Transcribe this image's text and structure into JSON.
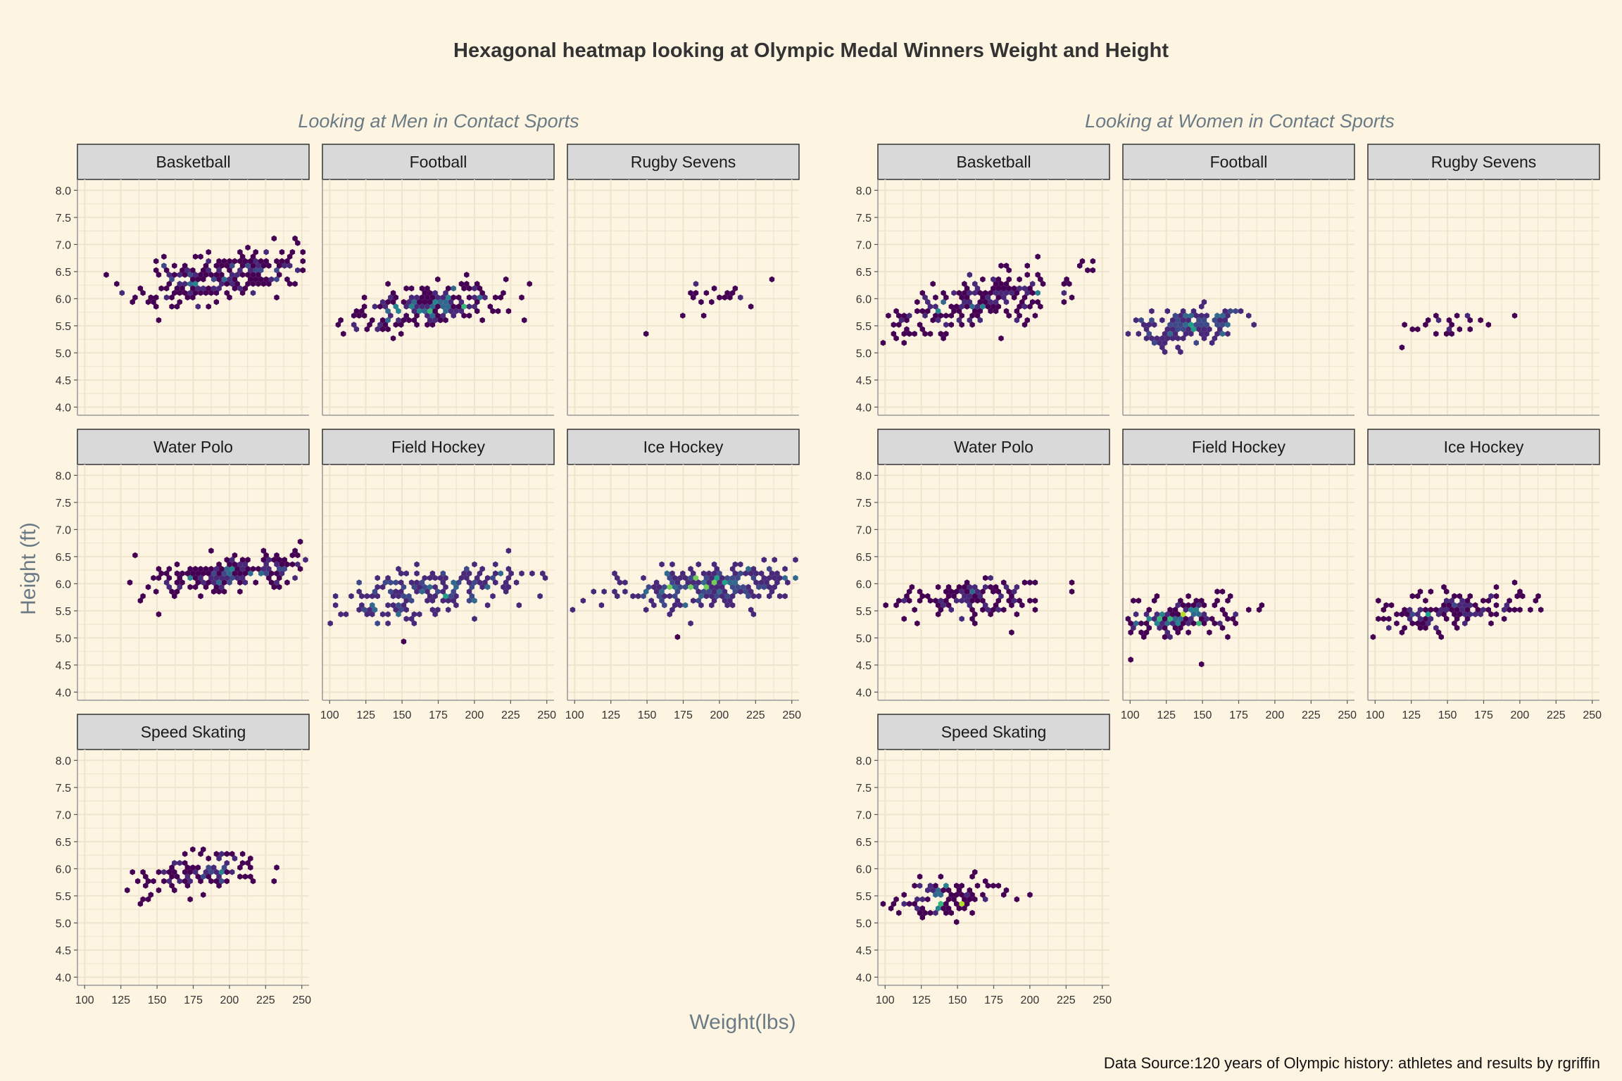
{
  "title": "Hexagonal heatmap looking at Olympic Medal Winners Weight and Height",
  "caption": "Data Source:120 years of Olympic history: athletes and results by rgriffin",
  "axis_titles": {
    "x": "Weight(lbs)",
    "y": "Height (ft)"
  },
  "colors": {
    "background": "#fdf5e2",
    "grid": "#efe5cf",
    "strip_fill": "#d9d9d9",
    "strip_border": "#333333",
    "panel_border": "#9a9a9a",
    "title_text": "#333333",
    "subtitle_text": "#6b7b86",
    "axis_title_text": "#6b7b86",
    "tick_text": "#333333",
    "viridis": [
      "#440154",
      "#482878",
      "#3e4989",
      "#31688e",
      "#26828e",
      "#1f9e89",
      "#35b779",
      "#6ece58",
      "#b5de2b",
      "#fde725"
    ]
  },
  "chart_data": {
    "type": "hexbin",
    "x_ticks": [
      100,
      125,
      150,
      175,
      200,
      225,
      250
    ],
    "y_ticks": [
      "4.0",
      "4.5",
      "5.0",
      "5.5",
      "6.0",
      "6.5",
      "7.0",
      "7.5",
      "8.0"
    ],
    "xlim": [
      95,
      255
    ],
    "ylim": [
      3.85,
      8.2
    ],
    "groups": [
      {
        "subtitle": "Looking at Men in Contact Sports",
        "panels": [
          {
            "name": "Basketball",
            "clusters": [
              {
                "cx": 195,
                "cy": 6.4,
                "sx": 60,
                "sy": 0.45,
                "n": 240,
                "dens": 0.45,
                "rot": 0.6,
                "seed": 11
              },
              {
                "cx": 130,
                "cy": 5.95,
                "sx": 2,
                "sy": 0.05,
                "n": 1,
                "dens": 0.1,
                "rot": 0,
                "seed": 12
              },
              {
                "cx": 147,
                "cy": 5.85,
                "sx": 2,
                "sy": 0.05,
                "n": 1,
                "dens": 0.1,
                "rot": 0,
                "seed": 13
              }
            ]
          },
          {
            "name": "Football",
            "clusters": [
              {
                "cx": 168,
                "cy": 5.85,
                "sx": 55,
                "sy": 0.4,
                "n": 230,
                "dens": 0.7,
                "rot": 0.55,
                "seed": 21
              },
              {
                "cx": 117,
                "cy": 5.4,
                "sx": 3,
                "sy": 0.05,
                "n": 1,
                "dens": 0.1,
                "rot": 0,
                "seed": 22
              }
            ]
          },
          {
            "name": "Rugby Sevens",
            "clusters": [
              {
                "cx": 200,
                "cy": 6.0,
                "sx": 40,
                "sy": 0.35,
                "n": 22,
                "dens": 0.12,
                "rot": 0.5,
                "seed": 31
              }
            ]
          },
          {
            "name": "Water Polo",
            "clusters": [
              {
                "cx": 205,
                "cy": 6.2,
                "sx": 55,
                "sy": 0.35,
                "n": 200,
                "dens": 0.45,
                "rot": 0.45,
                "seed": 41
              },
              {
                "cx": 140,
                "cy": 5.75,
                "sx": 3,
                "sy": 0.05,
                "n": 2,
                "dens": 0.1,
                "rot": 0,
                "seed": 42
              }
            ]
          },
          {
            "name": "Field Hockey",
            "clusters": [
              {
                "cx": 165,
                "cy": 5.8,
                "sx": 65,
                "sy": 0.45,
                "n": 200,
                "dens": 0.55,
                "rot": 0.55,
                "seed": 51
              },
              {
                "cx": 152,
                "cy": 4.92,
                "sx": 1,
                "sy": 0.02,
                "n": 1,
                "dens": 0.1,
                "rot": 0,
                "seed": 52
              }
            ]
          },
          {
            "name": "Ice Hockey",
            "clusters": [
              {
                "cx": 190,
                "cy": 5.95,
                "sx": 70,
                "sy": 0.38,
                "n": 260,
                "dens": 0.8,
                "rot": 0.4,
                "seed": 61
              },
              {
                "cx": 170,
                "cy": 5.07,
                "sx": 1,
                "sy": 0.02,
                "n": 1,
                "dens": 0.1,
                "rot": 0,
                "seed": 62
              }
            ]
          },
          {
            "name": "Speed Skating",
            "clusters": [
              {
                "cx": 180,
                "cy": 5.95,
                "sx": 45,
                "sy": 0.33,
                "n": 110,
                "dens": 0.45,
                "rot": 0.55,
                "seed": 71
              },
              {
                "cx": 143,
                "cy": 5.45,
                "sx": 6,
                "sy": 0.1,
                "n": 5,
                "dens": 0.1,
                "rot": 0,
                "seed": 72
              }
            ]
          }
        ]
      },
      {
        "subtitle": "Looking at Women in Contact Sports",
        "panels": [
          {
            "name": "Basketball",
            "clusters": [
              {
                "cx": 165,
                "cy": 5.95,
                "sx": 60,
                "sy": 0.5,
                "n": 210,
                "dens": 0.45,
                "rot": 0.6,
                "seed": 81
              },
              {
                "cx": 240,
                "cy": 6.6,
                "sx": 12,
                "sy": 0.1,
                "n": 5,
                "dens": 0.1,
                "rot": 0,
                "seed": 82
              }
            ]
          },
          {
            "name": "Football",
            "clusters": [
              {
                "cx": 140,
                "cy": 5.5,
                "sx": 45,
                "sy": 0.35,
                "n": 140,
                "dens": 0.55,
                "rot": 0.6,
                "seed": 91
              }
            ]
          },
          {
            "name": "Rugby Sevens",
            "clusters": [
              {
                "cx": 150,
                "cy": 5.5,
                "sx": 30,
                "sy": 0.25,
                "n": 25,
                "dens": 0.12,
                "rot": 0.3,
                "seed": 101
              },
              {
                "cx": 197,
                "cy": 5.65,
                "sx": 1,
                "sy": 0.02,
                "n": 1,
                "dens": 0.1,
                "rot": 0,
                "seed": 102
              }
            ]
          },
          {
            "name": "Water Polo",
            "clusters": [
              {
                "cx": 160,
                "cy": 5.75,
                "sx": 55,
                "sy": 0.35,
                "n": 130,
                "dens": 0.3,
                "rot": 0.4,
                "seed": 111
              },
              {
                "cx": 228,
                "cy": 6.0,
                "sx": 1,
                "sy": 0.02,
                "n": 1,
                "dens": 0.1,
                "rot": 0,
                "seed": 112
              }
            ]
          },
          {
            "name": "Field Hockey",
            "clusters": [
              {
                "cx": 135,
                "cy": 5.4,
                "sx": 45,
                "sy": 0.35,
                "n": 170,
                "dens": 0.9,
                "rot": 0.45,
                "seed": 121
              },
              {
                "cx": 148,
                "cy": 4.52,
                "sx": 1,
                "sy": 0.02,
                "n": 1,
                "dens": 0.1,
                "rot": 0,
                "seed": 122
              }
            ]
          },
          {
            "name": "Ice Hockey",
            "clusters": [
              {
                "cx": 150,
                "cy": 5.5,
                "sx": 50,
                "sy": 0.35,
                "n": 150,
                "dens": 0.5,
                "rot": 0.45,
                "seed": 131
              }
            ]
          },
          {
            "name": "Speed Skating",
            "clusters": [
              {
                "cx": 135,
                "cy": 5.45,
                "sx": 45,
                "sy": 0.35,
                "n": 110,
                "dens": 0.9,
                "rot": 0.6,
                "seed": 141
              }
            ]
          }
        ]
      }
    ]
  }
}
